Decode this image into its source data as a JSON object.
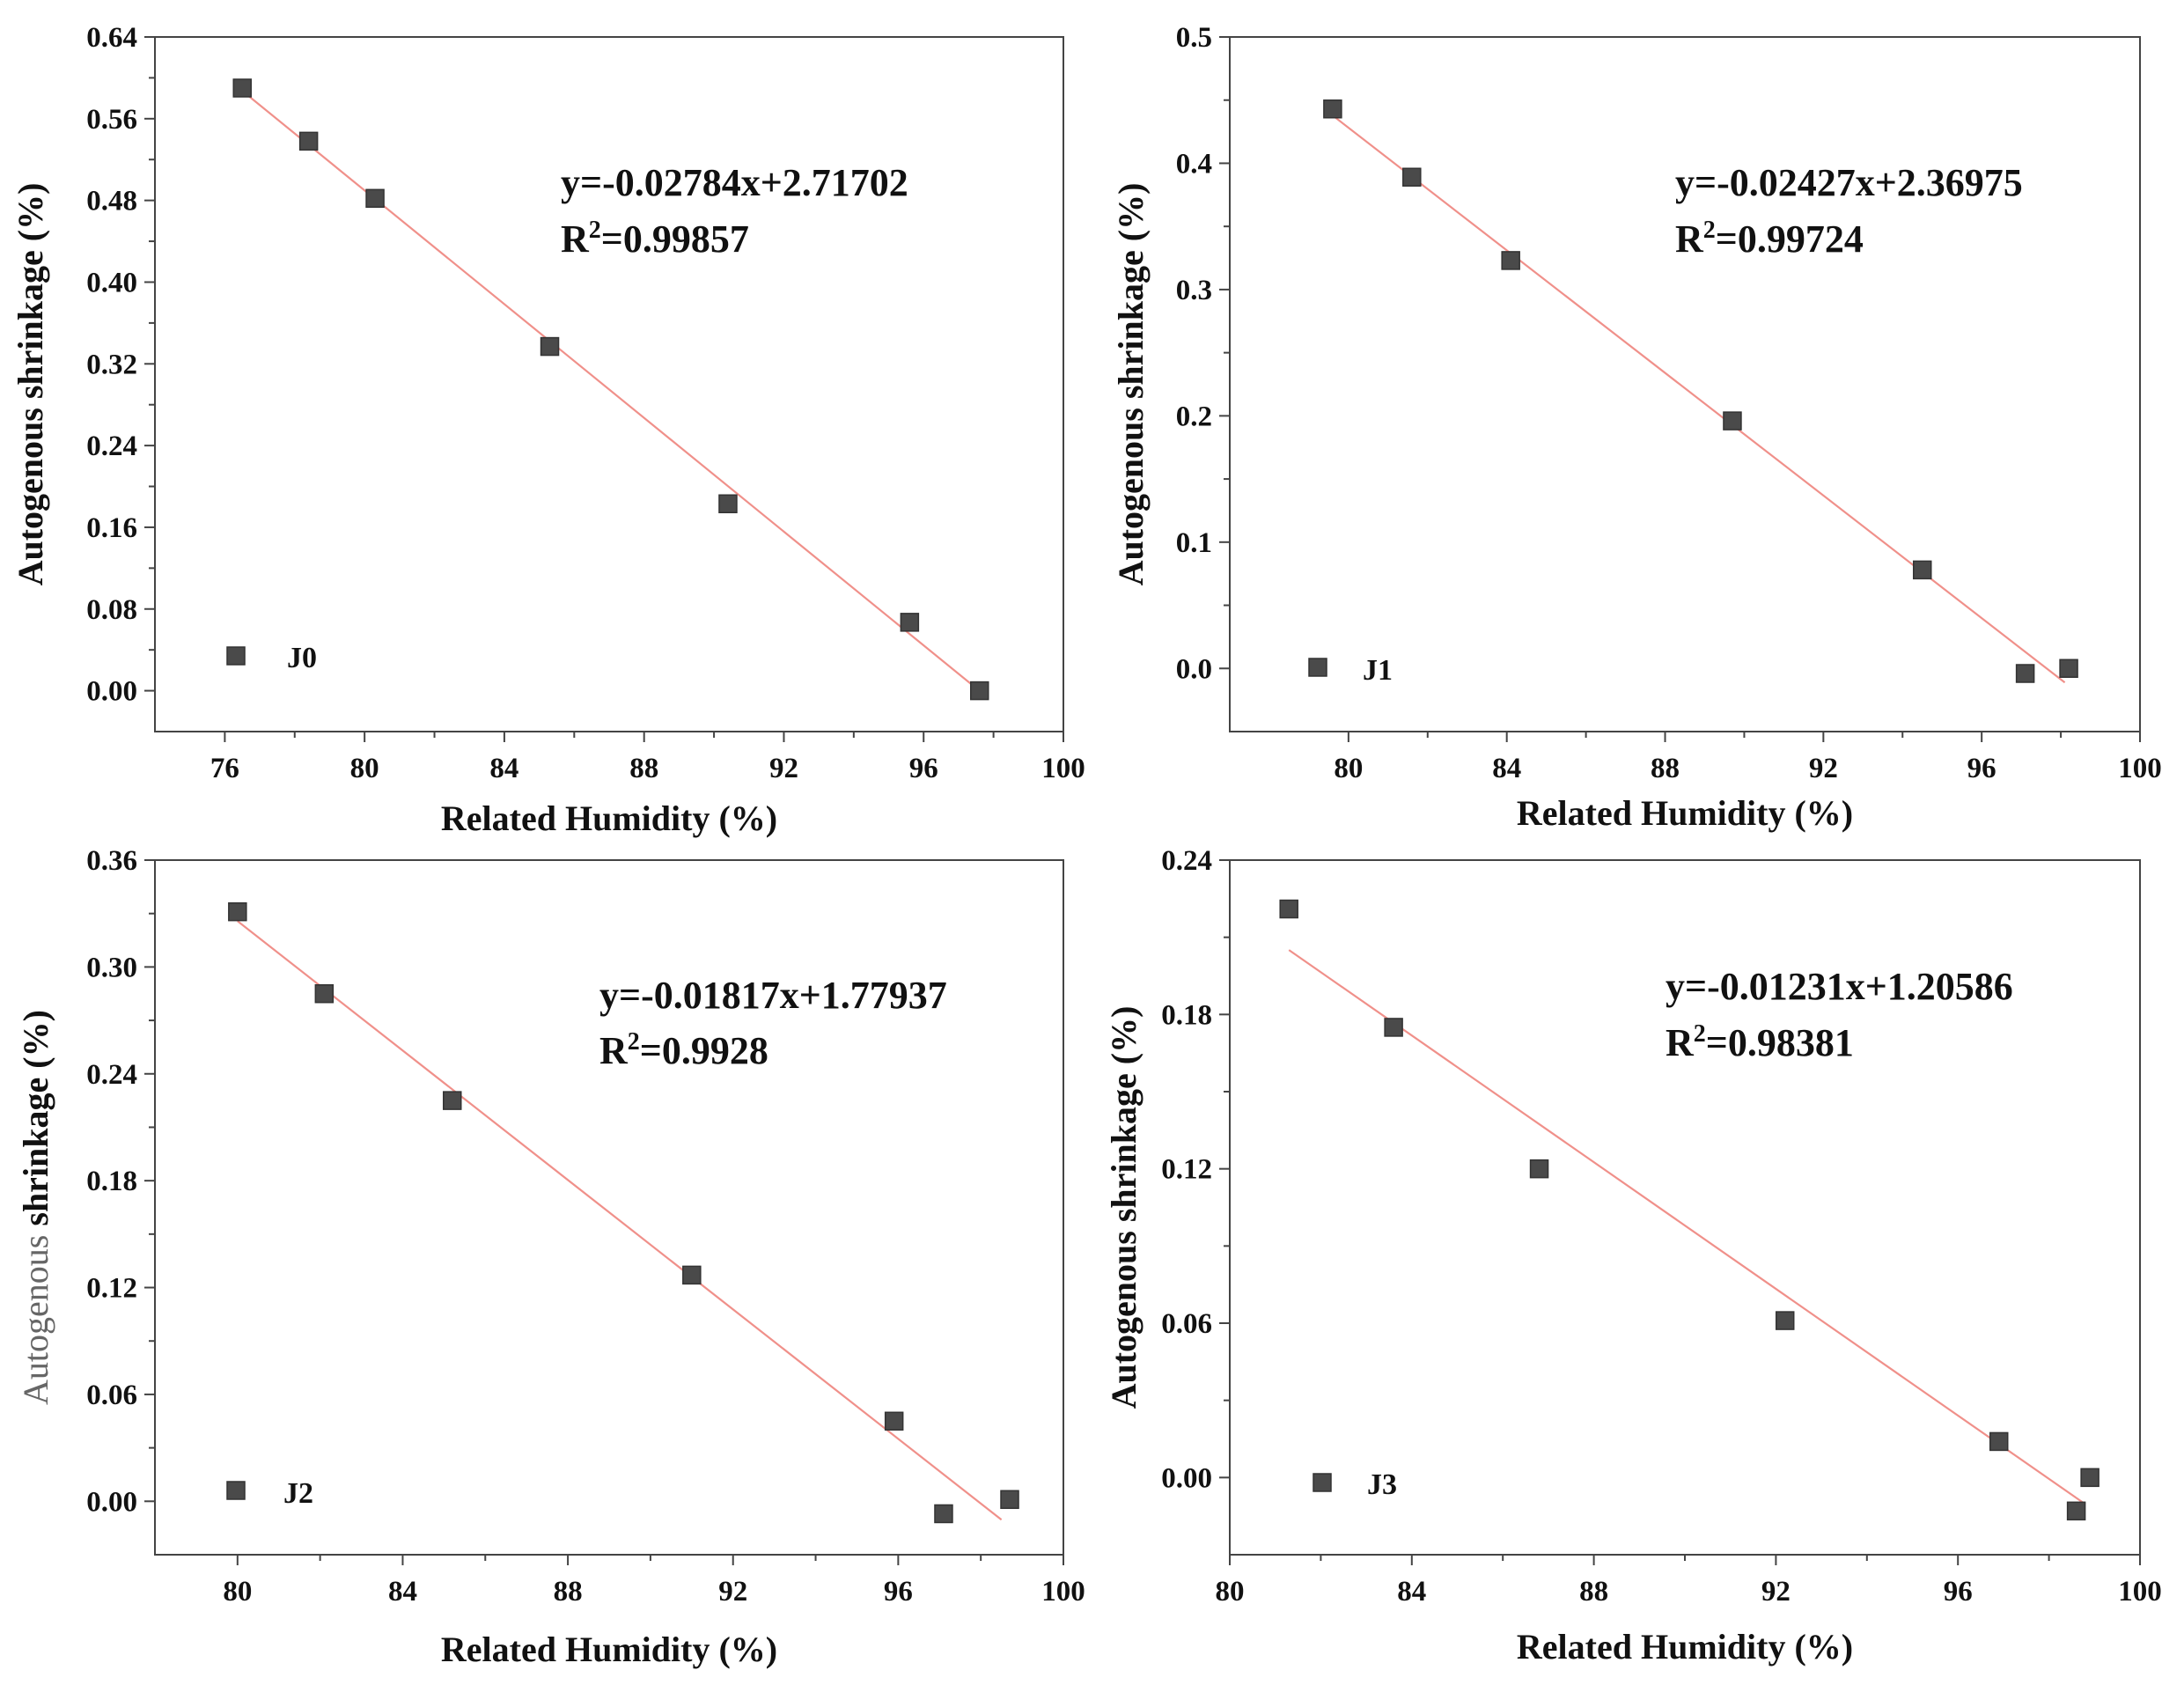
{
  "chart_data": [
    {
      "type": "scatter",
      "xlabel": "Related Humidity (%)",
      "ylabel": "Autogenous shrinkage (%)",
      "xlim": [
        74,
        100
      ],
      "ylim": [
        -0.04,
        0.64
      ],
      "xticks": [
        76,
        80,
        84,
        88,
        92,
        96,
        100
      ],
      "xtick_labels": [
        "76",
        "80",
        "84",
        "88",
        "92",
        "96",
        "100"
      ],
      "yticks": [
        0,
        0.08,
        0.16,
        0.24,
        0.32,
        0.4,
        0.48,
        0.56,
        0.64
      ],
      "ytick_labels": [
        "0.00",
        "0.08",
        "0.16",
        "0.24",
        "0.32",
        "0.40",
        "0.48",
        "0.56",
        "0.64"
      ],
      "legend": "J0",
      "series": [
        {
          "name": "J0",
          "x": [
            76.5,
            78.4,
            80.3,
            85.3,
            90.4,
            95.6,
            97.6
          ],
          "y": [
            0.59,
            0.538,
            0.482,
            0.337,
            0.183,
            0.067,
            0.0
          ]
        }
      ],
      "fit": {
        "slope": -0.02784,
        "intercept": 2.71702,
        "x_range": [
          76.3,
          97.8
        ]
      },
      "equation": "y=-0.02784x+2.71702",
      "r2_prefix": "R",
      "r2_sup": "2",
      "r2_value": "=0.99857"
    },
    {
      "type": "scatter",
      "xlabel": "Related Humidity (%)",
      "ylabel": "Autogenous shrinkage (%)",
      "xlim": [
        77,
        100
      ],
      "ylim": [
        -0.05,
        0.5
      ],
      "xticks": [
        80,
        84,
        88,
        92,
        96,
        100
      ],
      "xtick_labels": [
        "80",
        "84",
        "88",
        "92",
        "96",
        "100"
      ],
      "yticks": [
        0,
        0.1,
        0.2,
        0.3,
        0.4,
        0.5
      ],
      "ytick_labels": [
        "0.0",
        "0.1",
        "0.2",
        "0.3",
        "0.4",
        "0.5"
      ],
      "legend": "J1",
      "series": [
        {
          "name": "J1",
          "x": [
            79.6,
            81.6,
            84.1,
            89.7,
            94.5,
            97.1,
            98.2
          ],
          "y": [
            0.443,
            0.389,
            0.323,
            0.196,
            0.078,
            -0.004,
            0.0
          ]
        }
      ],
      "fit": {
        "slope": -0.02427,
        "intercept": 2.36975,
        "x_range": [
          79.4,
          98.1
        ]
      },
      "equation": "y=-0.02427x+2.36975",
      "r2_prefix": "R",
      "r2_sup": "2",
      "r2_value": "=0.99724"
    },
    {
      "type": "scatter",
      "xlabel": "Related Humidity (%)",
      "ylabel_light": "Autogenous",
      "ylabel_bold": " shrinkage (%)",
      "xlim": [
        78,
        100
      ],
      "ylim": [
        -0.03,
        0.36
      ],
      "xticks": [
        80,
        84,
        88,
        92,
        96,
        100
      ],
      "xtick_labels": [
        "80",
        "84",
        "88",
        "92",
        "96",
        "100"
      ],
      "yticks": [
        0,
        0.06,
        0.12,
        0.18,
        0.24,
        0.3,
        0.36
      ],
      "ytick_labels": [
        "0.00",
        "0.06",
        "0.12",
        "0.18",
        "0.24",
        "0.30",
        "0.36"
      ],
      "legend": "J2",
      "series": [
        {
          "name": "J2",
          "x": [
            80.0,
            82.1,
            85.2,
            91.0,
            95.9,
            97.1,
            98.7
          ],
          "y": [
            0.331,
            0.285,
            0.225,
            0.127,
            0.045,
            -0.007,
            0.001
          ]
        }
      ],
      "fit": {
        "slope": -0.01817,
        "intercept": 1.77937,
        "x_range": [
          80.0,
          98.5
        ]
      },
      "equation": "y=-0.01817x+1.77937",
      "r2_prefix": "R",
      "r2_sup": "2",
      "r2_value": "=0.9928"
    },
    {
      "type": "scatter",
      "xlabel": "Related Humidity (%)",
      "ylabel": "Autogenous shrinkage (%)",
      "xlim": [
        80,
        100
      ],
      "ylim": [
        -0.03,
        0.24
      ],
      "xticks": [
        80,
        84,
        88,
        92,
        96,
        100
      ],
      "xtick_labels": [
        "80",
        "84",
        "88",
        "92",
        "96",
        "100"
      ],
      "yticks": [
        0,
        0.06,
        0.12,
        0.18,
        0.24
      ],
      "ytick_labels": [
        "0.00",
        "0.06",
        "0.12",
        "0.18",
        "0.24"
      ],
      "legend": "J3",
      "series": [
        {
          "name": "J3",
          "x": [
            81.3,
            83.6,
            86.8,
            92.2,
            96.9,
            98.6,
            98.9
          ],
          "y": [
            0.221,
            0.175,
            0.12,
            0.061,
            0.014,
            -0.013,
            0.0
          ]
        }
      ],
      "fit": {
        "slope": -0.01231,
        "intercept": 1.20586,
        "x_range": [
          81.3,
          98.8
        ]
      },
      "equation": "y=-0.01231x+1.20586",
      "r2_prefix": "R",
      "r2_sup": "2",
      "r2_value": "=0.98381"
    }
  ]
}
